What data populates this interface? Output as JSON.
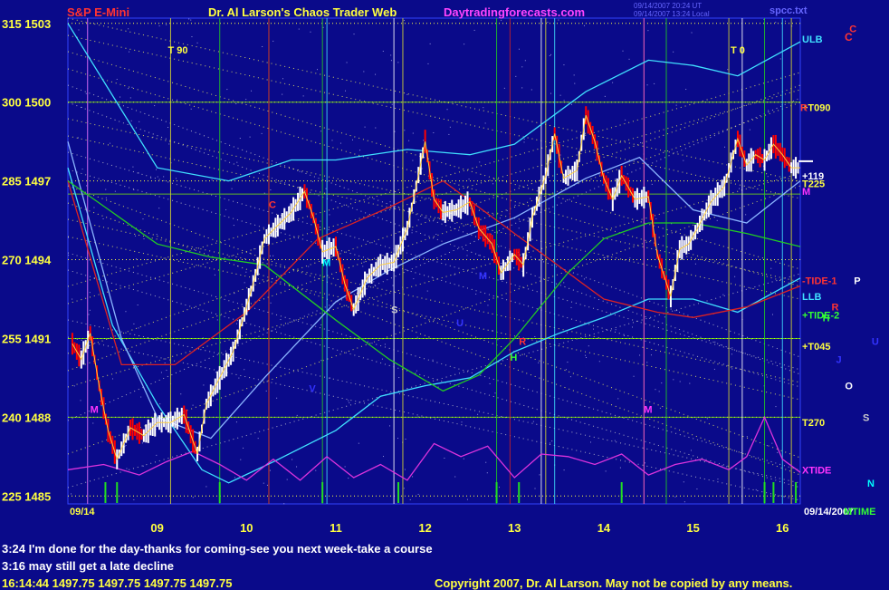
{
  "header": {
    "instrument": "S&P E-Mini",
    "title": "Dr. Al Larson's Chaos Trader Web",
    "site": "Daytradingforecasts.com",
    "timestamp_1": "09/14/2007 20:24 UT",
    "timestamp_2": "09/14/2007 13:24 Local",
    "filename": "spcc.txt",
    "corner_marker": "C"
  },
  "chart_data": {
    "type": "line",
    "title": "S&P E-Mini",
    "xlabel": "",
    "ylabel": "",
    "x_ticks": [
      "09",
      "10",
      "11",
      "12",
      "13",
      "14",
      "15",
      "16"
    ],
    "x_range": [
      8.0,
      16.2
    ],
    "y_range": [
      1484.7,
      1503.2
    ],
    "left_axis_labels": [
      {
        "code": "315",
        "price": 1503
      },
      {
        "code": "300",
        "price": 1500
      },
      {
        "code": "285",
        "price": 1497
      },
      {
        "code": "270",
        "price": 1494
      },
      {
        "code": "255",
        "price": 1491
      },
      {
        "code": "240",
        "price": 1488
      },
      {
        "code": "225",
        "price": 1485
      }
    ],
    "date_left": "09/14",
    "date_right": "09/14/2007",
    "mtime_label": "MTIME",
    "series": [
      {
        "name": "price",
        "color": "#ffffff",
        "color_down": "#ff0000",
        "x": [
          8.05,
          8.15,
          8.25,
          8.35,
          8.45,
          8.55,
          8.7,
          8.85,
          9.0,
          9.15,
          9.3,
          9.45,
          9.55,
          9.7,
          9.85,
          10.0,
          10.1,
          10.2,
          10.35,
          10.5,
          10.65,
          10.75,
          10.85,
          11.0,
          11.1,
          11.2,
          11.35,
          11.5,
          11.65,
          11.8,
          11.9,
          12.0,
          12.1,
          12.2,
          12.35,
          12.5,
          12.6,
          12.75,
          12.85,
          13.0,
          13.1,
          13.2,
          13.35,
          13.45,
          13.55,
          13.7,
          13.8,
          13.9,
          14.0,
          14.1,
          14.2,
          14.35,
          14.5,
          14.6,
          14.75,
          14.85,
          14.95,
          15.05,
          15.2,
          15.35,
          15.5,
          15.6,
          15.7,
          15.8,
          15.9,
          16.0,
          16.1,
          16.2
        ],
        "y": [
          1490.8,
          1490.2,
          1491.2,
          1489.2,
          1487.5,
          1486.4,
          1487.6,
          1487.3,
          1487.8,
          1487.8,
          1488.1,
          1486.6,
          1488.5,
          1489.5,
          1490.5,
          1492.2,
          1493.4,
          1494.8,
          1495.3,
          1495.8,
          1496.6,
          1495.6,
          1494.3,
          1494.5,
          1493.1,
          1492.1,
          1493.3,
          1493.8,
          1493.9,
          1495.2,
          1496.8,
          1498.5,
          1496.3,
          1495.8,
          1495.9,
          1496.2,
          1495.2,
          1494.6,
          1493.5,
          1494.2,
          1493.8,
          1495.6,
          1497.2,
          1498.8,
          1497.1,
          1497.4,
          1499.5,
          1498.5,
          1497.1,
          1496.3,
          1497.2,
          1496.3,
          1496.4,
          1494.2,
          1492.6,
          1494.4,
          1494.6,
          1495.2,
          1496.2,
          1496.8,
          1498.6,
          1497.6,
          1498.0,
          1497.8,
          1498.4,
          1498.0,
          1497.5,
          1497.5
        ]
      },
      {
        "name": "ULB",
        "color": "#40e0ff",
        "x": [
          8.0,
          9.0,
          9.8,
          10.5,
          11.0,
          11.8,
          12.5,
          13.0,
          13.8,
          14.5,
          15.0,
          15.5,
          16.2
        ],
        "y": [
          1503.0,
          1497.5,
          1497.0,
          1497.8,
          1497.8,
          1498.2,
          1498.0,
          1498.4,
          1500.4,
          1501.6,
          1501.4,
          1501.0,
          1502.3
        ]
      },
      {
        "name": "LLB",
        "color": "#40e0ff",
        "x": [
          8.0,
          8.5,
          9.0,
          9.5,
          9.8,
          10.3,
          11.0,
          11.5,
          12.0,
          12.5,
          13.0,
          13.5,
          14.0,
          14.5,
          15.0,
          15.5,
          16.2
        ],
        "y": [
          1497.5,
          1491.5,
          1488.5,
          1486.0,
          1485.5,
          1486.3,
          1487.5,
          1488.8,
          1489.2,
          1489.5,
          1490.5,
          1491.2,
          1491.8,
          1492.5,
          1492.5,
          1492.0,
          1493.3
        ]
      },
      {
        "name": "blue-band-inner",
        "color": "#8ab4ff",
        "x": [
          8.0,
          8.6,
          9.0,
          9.6,
          10.2,
          11.0,
          11.6,
          12.2,
          13.0,
          13.8,
          14.4,
          15.0,
          15.6,
          16.2
        ],
        "y": [
          1498.5,
          1491.0,
          1488.0,
          1487.2,
          1489.5,
          1492.4,
          1493.6,
          1494.6,
          1495.6,
          1497.1,
          1497.9,
          1495.9,
          1495.4,
          1497.0
        ]
      },
      {
        "name": "red-trend",
        "color": "#dd2222",
        "x": [
          8.0,
          8.6,
          9.2,
          10.0,
          10.8,
          11.6,
          12.2,
          13.0,
          13.6,
          14.0,
          14.6,
          15.0,
          15.6,
          16.2
        ],
        "y": [
          1497.0,
          1490.0,
          1490.0,
          1492.0,
          1494.8,
          1496.0,
          1497.0,
          1495.0,
          1493.5,
          1492.5,
          1492.0,
          1491.8,
          1492.2,
          1493.0
        ]
      },
      {
        "name": "green-trend",
        "color": "#22cc22",
        "x": [
          8.0,
          8.5,
          9.0,
          9.6,
          10.2,
          11.0,
          11.6,
          12.2,
          12.6,
          13.0,
          13.6,
          14.0,
          14.5,
          15.0,
          15.6,
          16.2
        ],
        "y": [
          1497.0,
          1495.8,
          1494.6,
          1494.1,
          1493.8,
          1491.7,
          1490.2,
          1489.0,
          1489.6,
          1491.0,
          1493.5,
          1494.8,
          1495.4,
          1495.4,
          1495.0,
          1494.5
        ]
      },
      {
        "name": "XTIDE",
        "color": "#dd33dd",
        "x": [
          8.0,
          8.4,
          8.8,
          9.1,
          9.4,
          9.7,
          10.0,
          10.3,
          10.6,
          10.9,
          11.2,
          11.5,
          11.8,
          12.1,
          12.4,
          12.7,
          13.0,
          13.3,
          13.6,
          13.9,
          14.2,
          14.5,
          14.8,
          15.1,
          15.4,
          15.6,
          15.8,
          16.0,
          16.2
        ],
        "y": [
          1486.0,
          1486.2,
          1485.8,
          1486.3,
          1486.7,
          1486.2,
          1485.6,
          1486.4,
          1485.6,
          1486.5,
          1485.7,
          1486.2,
          1485.6,
          1487.0,
          1486.5,
          1486.9,
          1485.7,
          1486.6,
          1486.5,
          1486.2,
          1486.6,
          1485.8,
          1486.2,
          1486.4,
          1486.0,
          1486.5,
          1488.0,
          1486.4,
          1485.9
        ]
      }
    ],
    "vertical_lines": {
      "yellow": [
        9.15,
        10.25,
        11.75,
        13.35,
        14.45,
        15.4,
        16.1
      ],
      "cyan": [
        8.22,
        10.9,
        13.45,
        16.0
      ],
      "magenta": [
        8.22,
        14.45
      ],
      "white": [
        11.65,
        13.3,
        15.55
      ],
      "green": [
        9.7,
        10.85,
        12.8,
        14.7,
        15.8
      ],
      "red": [
        10.25,
        12.95
      ]
    },
    "horizontal_lines": [
      1500,
      1496.5,
      1491,
      1488
    ],
    "mtime_spikes": [
      8.42,
      8.55,
      9.7,
      10.85,
      11.7,
      12.8,
      13.05,
      14.2,
      15.8,
      15.9,
      16.15
    ],
    "right_labels": [
      {
        "text": "ULB",
        "price": 1502.4,
        "color": "#40e0ff"
      },
      {
        "text": "+T090",
        "price": 1499.8,
        "color": "#ffff40"
      },
      {
        "text": "+119",
        "price": 1497.2,
        "color": "#ffffff"
      },
      {
        "text": "T225",
        "price": 1496.9,
        "color": "#ffff40"
      },
      {
        "text": "M",
        "price": 1496.6,
        "color": "#ff33ff"
      },
      {
        "text": "-TIDE-1",
        "price": 1493.2,
        "color": "#ff3333"
      },
      {
        "text": "LLB",
        "price": 1492.6,
        "color": "#40e0ff"
      },
      {
        "text": "+TIDE-2",
        "price": 1491.9,
        "color": "#33ff33"
      },
      {
        "text": "+T045",
        "price": 1490.7,
        "color": "#ffff40"
      },
      {
        "text": "T270",
        "price": 1487.8,
        "color": "#ffff40"
      },
      {
        "text": "XTIDE",
        "price": 1486.0,
        "color": "#ff33ff"
      }
    ],
    "planet_markers": [
      {
        "text": "T 90",
        "x": 9.12,
        "price": 1502.0,
        "color": "#ffff40"
      },
      {
        "text": "T 0",
        "x": 15.42,
        "price": 1502.0,
        "color": "#ffff40"
      },
      {
        "text": "C",
        "x": 10.25,
        "price": 1496.1,
        "color": "#ff3333"
      },
      {
        "text": "M",
        "x": 10.85,
        "price": 1493.9,
        "color": "#00ffff"
      },
      {
        "text": "S",
        "x": 11.62,
        "price": 1492.1,
        "color": "#cccccc"
      },
      {
        "text": "M",
        "x": 12.6,
        "price": 1493.4,
        "color": "#3333ff"
      },
      {
        "text": "R",
        "x": 13.05,
        "price": 1490.9,
        "color": "#ff3333"
      },
      {
        "text": "H",
        "x": 12.95,
        "price": 1490.3,
        "color": "#33ff33"
      },
      {
        "text": "M",
        "x": 8.25,
        "price": 1488.3,
        "color": "#ff33ff"
      },
      {
        "text": "M",
        "x": 14.45,
        "price": 1488.3,
        "color": "#ff33ff"
      },
      {
        "text": "U",
        "x": 12.35,
        "price": 1491.6,
        "color": "#3333ff"
      },
      {
        "text": "V",
        "x": 10.7,
        "price": 1489.1,
        "color": "#3333ff"
      },
      {
        "text": "R",
        "x": 16.2,
        "price": 1499.8,
        "color": "#ff3333"
      },
      {
        "text": "C",
        "x": 16.75,
        "price": 1502.8,
        "color": "#ff3333"
      },
      {
        "text": "P",
        "x": 16.8,
        "price": 1493.2,
        "color": "#ffffff"
      },
      {
        "text": "R",
        "x": 16.55,
        "price": 1492.2,
        "color": "#ff3333"
      },
      {
        "text": "H",
        "x": 16.45,
        "price": 1491.8,
        "color": "#33ff33"
      },
      {
        "text": "U",
        "x": 17.0,
        "price": 1490.9,
        "color": "#3333ff"
      },
      {
        "text": "J",
        "x": 16.6,
        "price": 1490.2,
        "color": "#3333ff"
      },
      {
        "text": "O",
        "x": 16.7,
        "price": 1489.2,
        "color": "#ffffff"
      },
      {
        "text": "S",
        "x": 16.9,
        "price": 1488.0,
        "color": "#cccccc"
      },
      {
        "text": "N",
        "x": 16.95,
        "price": 1485.5,
        "color": "#00ffff"
      }
    ]
  },
  "notes": [
    "3:24 I'm done for the day-thanks for coming-see you next week-take a course",
    "3:16 may still get a late decline"
  ],
  "quote_line": "16:14:44  1497.75 1497.75 1497.75 1497.75",
  "copyright": "Copyright 2007, Dr. Al Larson. May not be copied by any means."
}
